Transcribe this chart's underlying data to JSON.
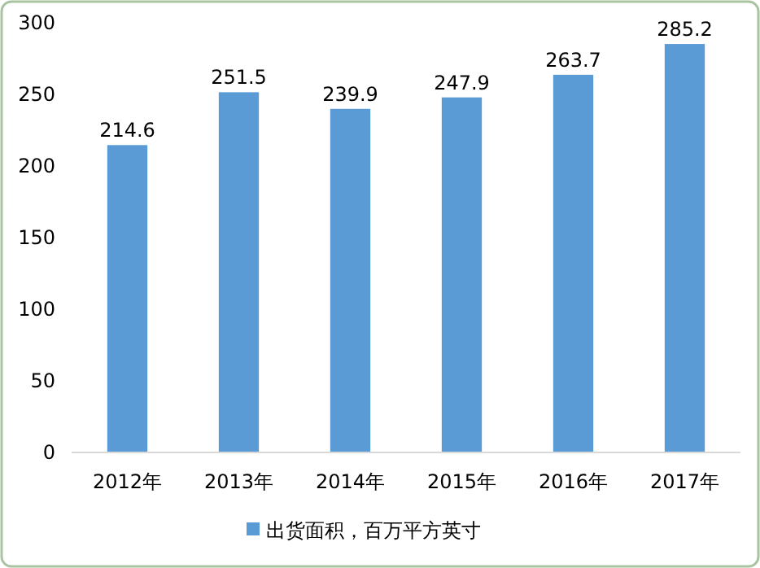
{
  "chart_data": {
    "type": "bar",
    "categories": [
      "2012年",
      "2013年",
      "2014年",
      "2015年",
      "2016年",
      "2017年"
    ],
    "series": [
      {
        "name": "出货面积，百万平方英寸",
        "color": "#5b9bd5",
        "values": [
          214.6,
          251.5,
          239.9,
          247.9,
          263.7,
          285.2
        ]
      }
    ],
    "ylim": [
      0,
      300
    ],
    "yticks": [
      0,
      50,
      100,
      150,
      200,
      250,
      300
    ],
    "data_labels": true,
    "legend": "bottom",
    "grid": false
  }
}
